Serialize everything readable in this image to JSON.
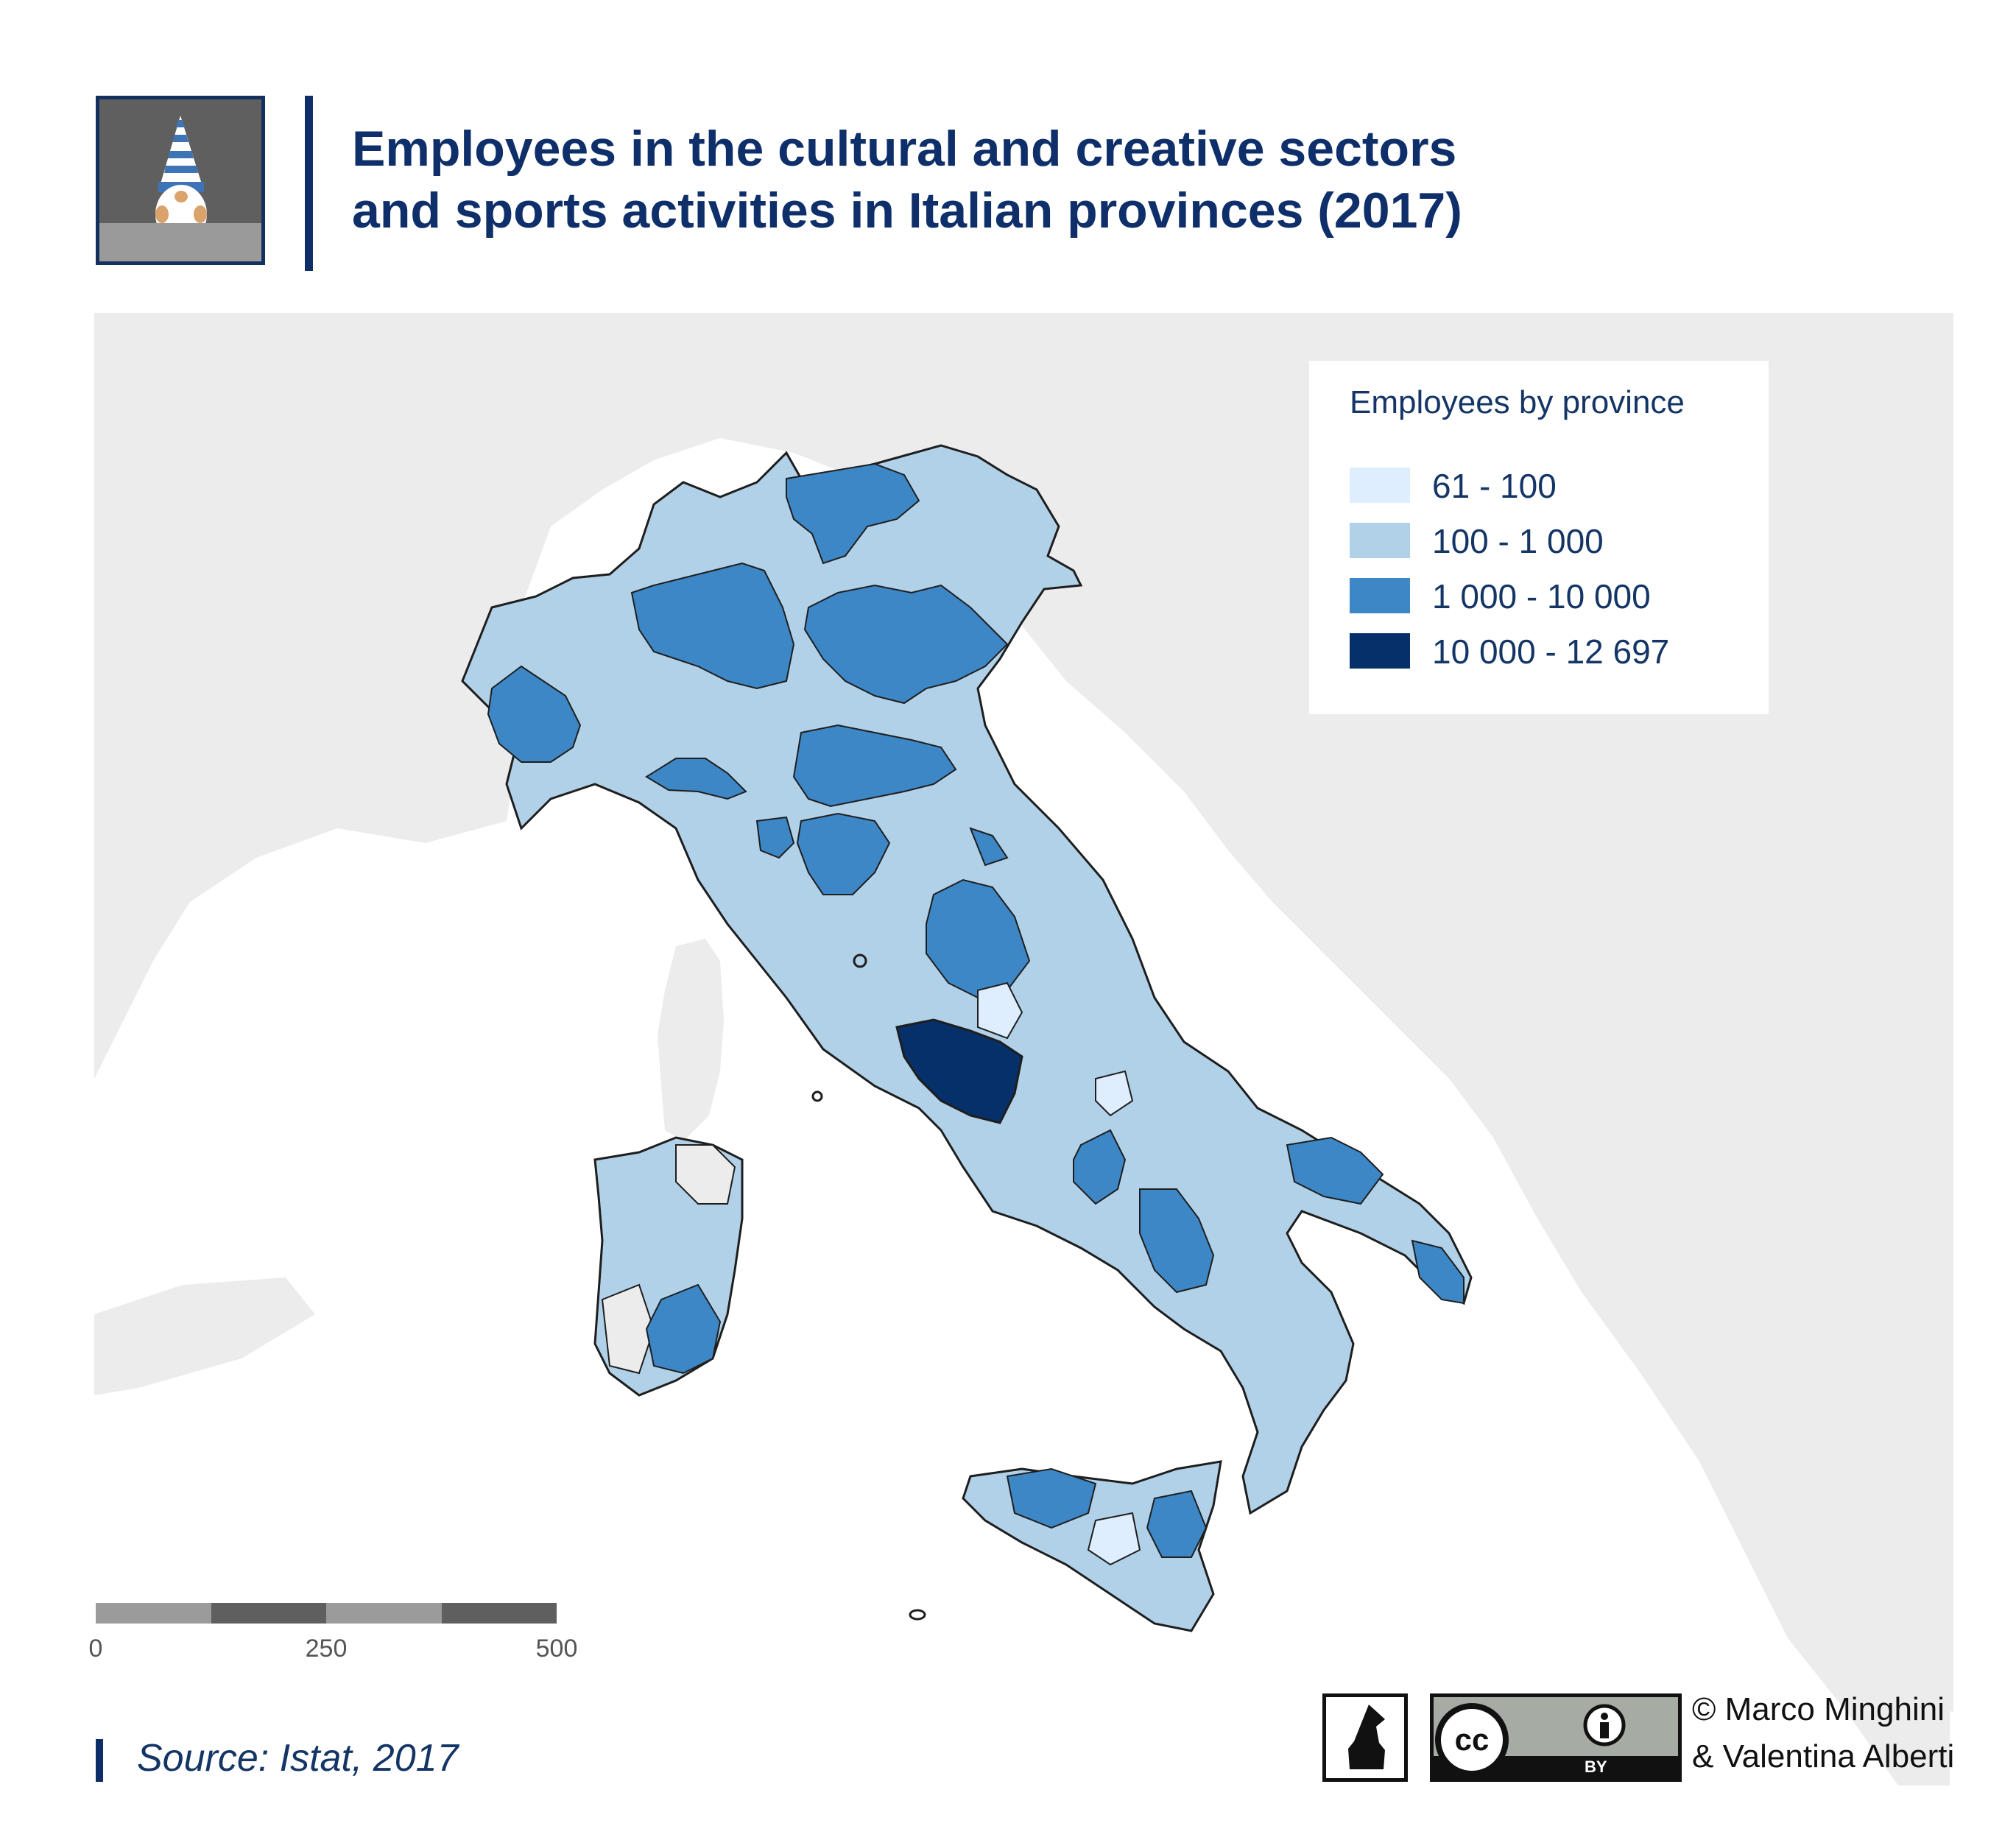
{
  "header": {
    "title_line1": "Employees in the cultural and creative sectors",
    "title_line2": "and sports activities in Italian provinces (2017)"
  },
  "legend": {
    "title": "Employees by province",
    "items": [
      {
        "label": "61 - 100",
        "color": "#deeeff"
      },
      {
        "label": "100 - 1 000",
        "color": "#b1d1e8"
      },
      {
        "label": "1 000 - 10 000",
        "color": "#3d87c7"
      },
      {
        "label": "10 000 - 12 697",
        "color": "#06306a"
      }
    ]
  },
  "map": {
    "background_land_color": "#ececec",
    "no_data_color": "#ececec",
    "border_color": "#1e1e1e"
  },
  "scale": {
    "labels": [
      "0",
      "250",
      "500"
    ],
    "colors": [
      "#9b9b9b",
      "#5f5f5f"
    ]
  },
  "footer": {
    "source": "Source: Istat, 2017",
    "cc_label": "BY",
    "copyright_line1": "© Marco Minghini",
    "copyright_line2": "& Valentina Alberti"
  }
}
